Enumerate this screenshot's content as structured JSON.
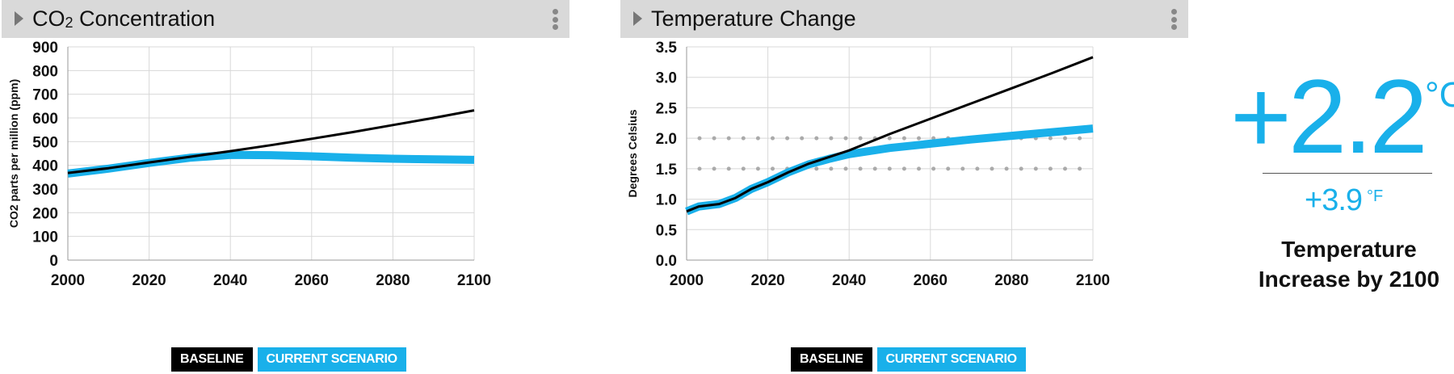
{
  "colors": {
    "baseline": "#000000",
    "current": "#19b0ea",
    "header_bg": "#d9d9d9",
    "threshold_dots": "#aaaaaa"
  },
  "co2_panel": {
    "title_main": "CO",
    "title_sub": "2",
    "title_rest": " Concentration",
    "legend_baseline": "BASELINE",
    "legend_current": "CURRENT SCENARIO"
  },
  "temp_panel": {
    "title": "Temperature Change",
    "legend_baseline": "BASELINE",
    "legend_current": "CURRENT SCENARIO"
  },
  "summary": {
    "celsius_value": "+2.2",
    "celsius_unit": "°C",
    "fahrenheit_value": "+3.9",
    "fahrenheit_unit": "°F",
    "caption": "Temperature Increase by 2100"
  },
  "chart_data": [
    {
      "type": "line",
      "id": "co2",
      "title": "CO2 Concentration",
      "xlabel": "",
      "ylabel": "CO2 parts per million (ppm)",
      "xlim": [
        2000,
        2100
      ],
      "ylim": [
        0,
        900
      ],
      "xticks": [
        2000,
        2020,
        2040,
        2060,
        2080,
        2100
      ],
      "yticks": [
        0,
        100,
        200,
        300,
        400,
        500,
        600,
        700,
        800,
        900
      ],
      "ytick_decimals": 0,
      "grid": true,
      "thresholds": [],
      "legend": "bottom",
      "series": [
        {
          "name": "BASELINE",
          "color": "#000000",
          "x": [
            2000,
            2010,
            2020,
            2030,
            2040,
            2050,
            2060,
            2070,
            2080,
            2090,
            2100
          ],
          "values": [
            368,
            388,
            412,
            436,
            460,
            485,
            512,
            540,
            570,
            600,
            632
          ]
        },
        {
          "name": "CURRENT SCENARIO",
          "color": "#19b0ea",
          "x": [
            2000,
            2010,
            2020,
            2030,
            2040,
            2050,
            2060,
            2070,
            2080,
            2090,
            2100
          ],
          "values": [
            365,
            386,
            410,
            432,
            444,
            443,
            438,
            432,
            428,
            425,
            423
          ]
        }
      ]
    },
    {
      "type": "line",
      "id": "temp",
      "title": "Temperature Change",
      "xlabel": "",
      "ylabel": "Degrees Celsius",
      "xlim": [
        2000,
        2100
      ],
      "ylim": [
        0,
        3.5
      ],
      "xticks": [
        2000,
        2020,
        2040,
        2060,
        2080,
        2100
      ],
      "yticks": [
        0,
        0.5,
        1.0,
        1.5,
        2.0,
        2.5,
        3.0,
        3.5
      ],
      "ytick_decimals": 1,
      "grid": true,
      "thresholds": [
        1.5,
        2.0
      ],
      "legend": "bottom",
      "series": [
        {
          "name": "BASELINE",
          "color": "#000000",
          "x": [
            2000,
            2003,
            2008,
            2012,
            2016,
            2020,
            2025,
            2030,
            2040,
            2050,
            2060,
            2070,
            2080,
            2090,
            2100
          ],
          "values": [
            0.8,
            0.88,
            0.92,
            1.02,
            1.17,
            1.28,
            1.44,
            1.58,
            1.8,
            2.07,
            2.32,
            2.57,
            2.82,
            3.07,
            3.33
          ]
        },
        {
          "name": "CURRENT SCENARIO",
          "color": "#19b0ea",
          "x": [
            2000,
            2003,
            2008,
            2012,
            2016,
            2020,
            2025,
            2030,
            2035,
            2040,
            2050,
            2060,
            2070,
            2080,
            2090,
            2100
          ],
          "values": [
            0.8,
            0.88,
            0.92,
            1.02,
            1.17,
            1.28,
            1.44,
            1.57,
            1.66,
            1.74,
            1.84,
            1.91,
            1.98,
            2.04,
            2.1,
            2.16
          ]
        }
      ]
    }
  ]
}
